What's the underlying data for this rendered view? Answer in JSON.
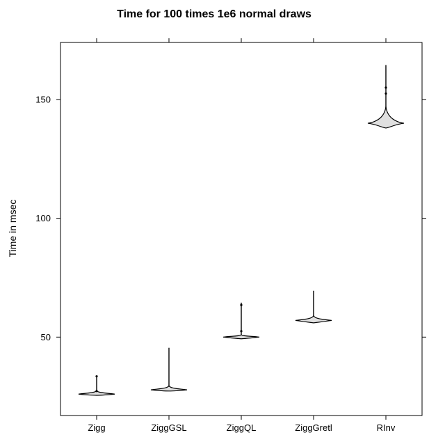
{
  "chart_data": {
    "type": "violin",
    "title": "Time for 100 times 1e6 normal draws",
    "xlabel": "",
    "ylabel": "Time in msec",
    "categories": [
      "Zigg",
      "ZiggGSL",
      "ZiggQL",
      "ZiggGretl",
      "RInv"
    ],
    "y_ticks": [
      50,
      100,
      150
    ],
    "y_tick_labels": [
      "50",
      "100",
      "150"
    ],
    "ylim": [
      17,
      174
    ],
    "series": [
      {
        "category": "Zigg",
        "min": 25.5,
        "mode": 26,
        "max": 33.5,
        "density_upper": 27.5,
        "outliers": [
          27.3,
          33.5
        ]
      },
      {
        "category": "ZiggGSL",
        "min": 27.3,
        "mode": 27.8,
        "max": 45.5,
        "density_upper": 29.5,
        "outliers": []
      },
      {
        "category": "ZiggQL",
        "min": 49.3,
        "mode": 50,
        "max": 64.5,
        "density_upper": 51,
        "outliers": [
          52.5,
          63.5
        ]
      },
      {
        "category": "ZiggGretl",
        "min": 56,
        "mode": 57,
        "max": 69.5,
        "density_upper": 59,
        "outliers": []
      },
      {
        "category": "RInv",
        "min": 138,
        "mode": 140,
        "max": 164.5,
        "density_upper": 147,
        "outliers": [
          152.5,
          155
        ]
      }
    ],
    "grid": false
  }
}
